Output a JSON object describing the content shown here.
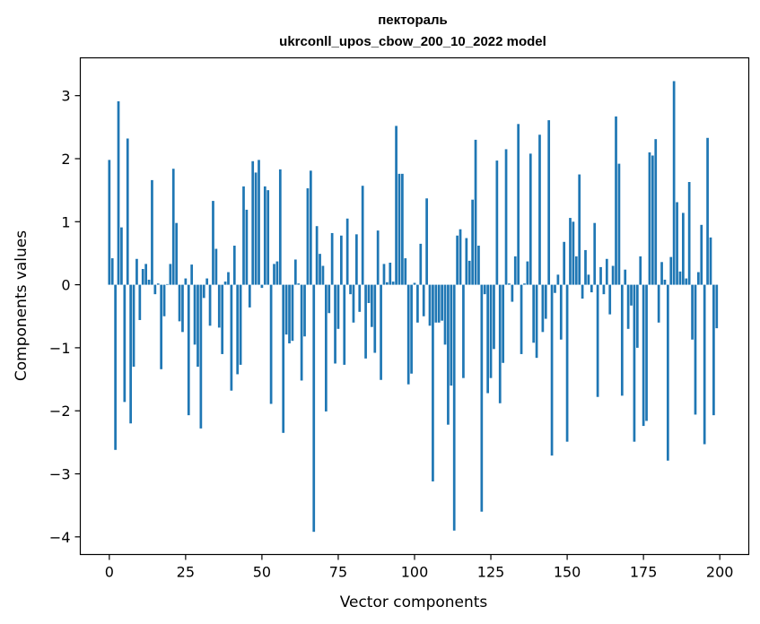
{
  "chart_data": {
    "type": "bar",
    "title": "пектораль",
    "subtitle": "ukrconll_upos_cbow_200_10_2022 model",
    "xlabel": "Vector components",
    "ylabel": "Components values",
    "xlim": [
      -9.5,
      209.5
    ],
    "ylim": [
      -4.28,
      3.6
    ],
    "xticks": [
      0,
      25,
      50,
      75,
      100,
      125,
      150,
      175,
      200
    ],
    "yticks": [
      -4,
      -3,
      -2,
      -1,
      0,
      1,
      2,
      3
    ],
    "xtick_labels": [
      "0",
      "25",
      "50",
      "75",
      "100",
      "125",
      "150",
      "175",
      "200"
    ],
    "ytick_labels": [
      "−4",
      "−3",
      "−2",
      "−1",
      "0",
      "1",
      "2",
      "3"
    ],
    "bar_color": "#1f77b4",
    "grid": false,
    "values": [
      1.98,
      0.42,
      -2.62,
      2.91,
      0.91,
      -1.86,
      2.32,
      -2.2,
      -1.3,
      0.41,
      -0.56,
      0.25,
      0.33,
      0.08,
      1.66,
      -0.15,
      0.02,
      -1.34,
      -0.5,
      0.01,
      0.33,
      1.84,
      0.98,
      -0.58,
      -0.75,
      0.1,
      -2.07,
      0.32,
      -0.95,
      -1.3,
      -2.28,
      -0.21,
      0.1,
      -0.65,
      1.33,
      0.57,
      -0.68,
      -1.1,
      0.05,
      0.2,
      -1.68,
      0.62,
      -1.42,
      -1.27,
      1.56,
      1.19,
      -0.36,
      1.96,
      1.78,
      1.98,
      -0.05,
      1.56,
      1.5,
      -1.89,
      0.33,
      0.37,
      1.83,
      -2.35,
      -0.79,
      -0.93,
      -0.89,
      0.4,
      0.02,
      -1.52,
      -0.82,
      1.53,
      1.81,
      -3.92,
      0.93,
      0.49,
      0.3,
      -2.01,
      -0.45,
      0.82,
      -1.25,
      -0.7,
      0.78,
      -1.27,
      1.05,
      -0.15,
      -0.6,
      0.8,
      -0.43,
      1.57,
      -1.17,
      -0.29,
      -0.67,
      -1.08,
      0.86,
      -1.51,
      0.33,
      0.04,
      0.35,
      0.05,
      2.52,
      1.76,
      1.76,
      0.42,
      -1.58,
      -1.41,
      0.03,
      -0.6,
      0.65,
      -0.5,
      1.37,
      -0.65,
      -3.12,
      -0.6,
      -0.6,
      -0.57,
      -0.95,
      -2.22,
      -1.6,
      -3.9,
      0.78,
      0.88,
      -1.48,
      0.74,
      0.38,
      1.35,
      2.3,
      0.62,
      -3.6,
      -0.15,
      -1.72,
      -1.48,
      -1.02,
      1.97,
      -1.88,
      -1.24,
      2.15,
      0.02,
      -0.27,
      0.45,
      2.55,
      -1.1,
      0.02,
      0.37,
      2.08,
      -0.92,
      -1.16,
      2.38,
      -0.75,
      -0.54,
      2.61,
      -2.71,
      -0.13,
      0.16,
      -0.87,
      0.68,
      -2.49,
      1.06,
      1.0,
      0.45,
      1.75,
      -0.22,
      0.55,
      0.16,
      -0.12,
      0.98,
      -1.78,
      0.28,
      -0.15,
      0.41,
      -0.47,
      0.3,
      2.67,
      1.92,
      -1.76,
      0.24,
      -0.7,
      -0.33,
      -2.49,
      -1.0,
      0.45,
      -2.24,
      -2.16,
      2.1,
      2.05,
      2.31,
      -0.6,
      0.36,
      0.08,
      -2.79,
      0.44,
      3.23,
      1.31,
      0.21,
      1.14,
      0.1,
      1.63,
      -0.87,
      -2.06,
      0.2,
      0.95,
      -2.53,
      2.33,
      0.75,
      -2.07,
      -0.69
    ]
  }
}
